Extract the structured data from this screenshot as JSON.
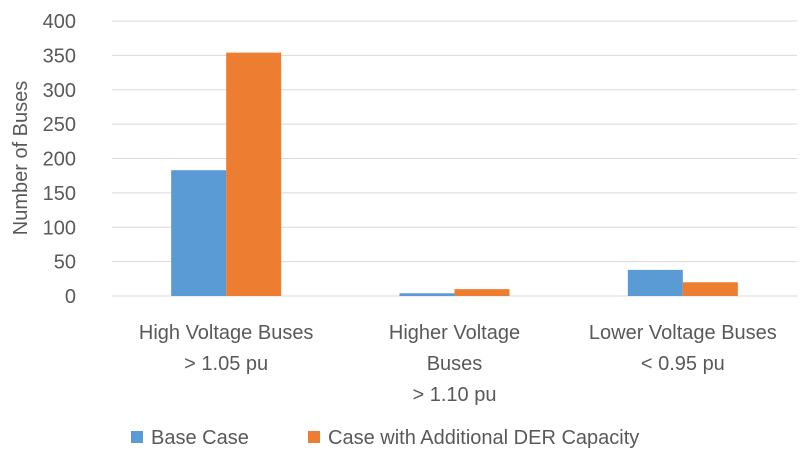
{
  "chart_data": {
    "type": "bar",
    "ylabel": "Number of Buses",
    "xlabel": "",
    "ylim": [
      0,
      400
    ],
    "yticks": [
      0,
      50,
      100,
      150,
      200,
      250,
      300,
      350,
      400
    ],
    "grid": true,
    "legend_position": "bottom",
    "categories": [
      [
        "High Voltage Buses",
        "> 1.05 pu"
      ],
      [
        "Higher Voltage",
        "Buses",
        "> 1.10 pu"
      ],
      [
        "Lower Voltage Buses",
        "< 0.95 pu"
      ]
    ],
    "series": [
      {
        "name": "Base Case",
        "color": "#5b9bd5",
        "values": [
          183,
          4,
          38
        ]
      },
      {
        "name": "Case with Additional DER Capacity",
        "color": "#ed7d31",
        "values": [
          354,
          10,
          20
        ]
      }
    ]
  }
}
